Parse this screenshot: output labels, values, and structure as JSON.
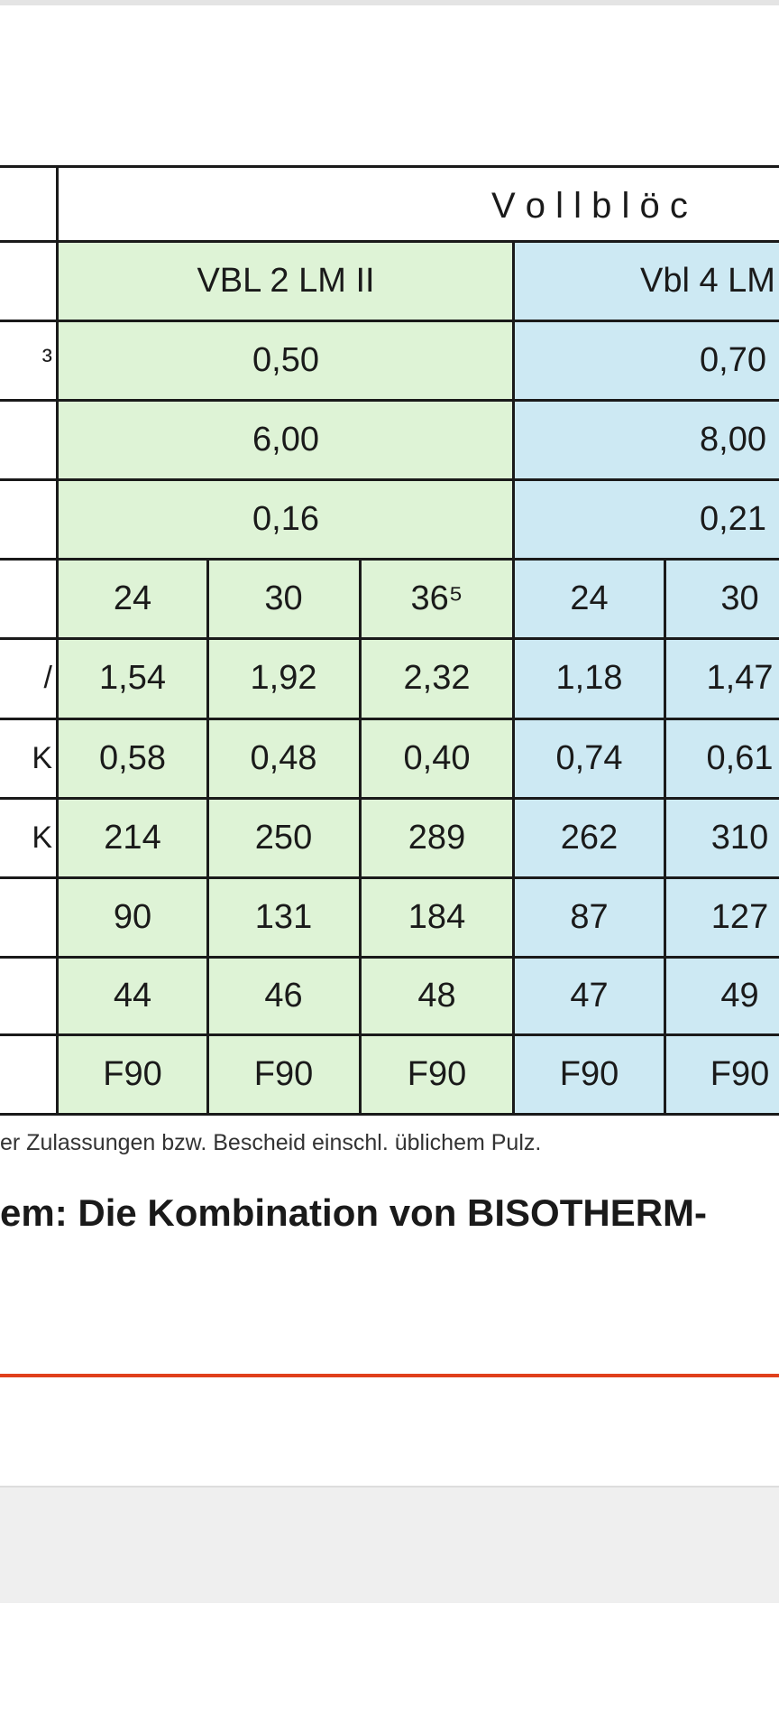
{
  "table": {
    "group_header": "V o l l b l ö c",
    "products": [
      "VBL 2 LM II",
      "Vbl 4 LM"
    ],
    "rows": [
      {
        "label": "³",
        "cells": [
          "0,50",
          "0,70"
        ]
      },
      {
        "cells": [
          "6,00",
          "8,00"
        ]
      },
      {
        "cells": [
          "0,16",
          "0,21"
        ]
      },
      {
        "cells": [
          "24",
          "30",
          "36⁵",
          "24",
          "30"
        ]
      },
      {
        "label": "/",
        "cells": [
          "1,54",
          "1,92",
          "2,32",
          "1,18",
          "1,47"
        ]
      },
      {
        "label": "K",
        "cells": [
          "0,58",
          "0,48",
          "0,40",
          "0,74",
          "0,61"
        ]
      },
      {
        "label": "K",
        "cells": [
          "214",
          "250",
          "289",
          "262",
          "310"
        ]
      },
      {
        "cells": [
          "90",
          "131",
          "184",
          "87",
          "127"
        ]
      },
      {
        "cells": [
          "44",
          "46",
          "48",
          "47",
          "49"
        ]
      },
      {
        "cells": [
          "F90",
          "F90",
          "F90",
          "F90",
          "F90"
        ]
      }
    ]
  },
  "footnote": "er Zulassungen bzw. Bescheid einschl. üblichem Pulz.",
  "heading": "em: Die Kombination von BISOTHERM-"
}
